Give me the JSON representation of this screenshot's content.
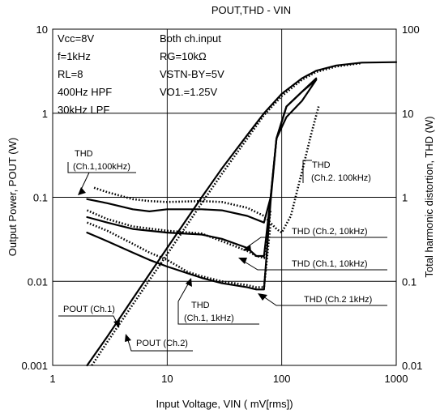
{
  "chart_data": {
    "type": "line",
    "title": "POUT,THD - VIN",
    "xlabel": "Input Voltage, VIN ( mV[rms])",
    "ylabel": "Output Power, POUT (W)",
    "y2label": "Total harmonic distortion, THD (W)",
    "x_scale": "log",
    "y_scale": "log",
    "xlim": [
      1,
      1000
    ],
    "ylim": [
      0.001,
      10
    ],
    "y2lim": [
      0.01,
      100
    ],
    "x_ticks": [
      "1",
      "10",
      "100",
      "1000"
    ],
    "y_ticks": [
      "0.001",
      "0.01",
      "0.1",
      "1",
      "10"
    ],
    "y2_ticks": [
      "0.01",
      "0.1",
      "1",
      "10",
      "100"
    ],
    "grid": true,
    "conditions_left": [
      "Vcc=8V",
      "f=1kHz",
      "RL=8",
      "400Hz HPF",
      "30kHz LPF"
    ],
    "conditions_right": [
      "Both ch.input",
      "RG=10kΩ",
      "VSTN-BY=5V",
      "VO1.=1.25V"
    ],
    "series": [
      {
        "name": "POUT (Ch.1)",
        "axis": "left",
        "style": "solid",
        "points": [
          [
            2,
            0.001
          ],
          [
            3,
            0.0022
          ],
          [
            5,
            0.0062
          ],
          [
            10,
            0.025
          ],
          [
            20,
            0.1
          ],
          [
            30,
            0.22
          ],
          [
            50,
            0.55
          ],
          [
            70,
            1.0
          ],
          [
            100,
            1.7
          ],
          [
            150,
            2.6
          ],
          [
            200,
            3.2
          ],
          [
            300,
            3.7
          ],
          [
            500,
            4.0
          ],
          [
            1000,
            4.05
          ]
        ]
      },
      {
        "name": "POUT (Ch.2)",
        "axis": "left",
        "style": "dotted",
        "points": [
          [
            2.2,
            0.001
          ],
          [
            3,
            0.0019
          ],
          [
            5,
            0.0053
          ],
          [
            10,
            0.021
          ],
          [
            20,
            0.085
          ],
          [
            30,
            0.19
          ],
          [
            50,
            0.5
          ],
          [
            70,
            0.95
          ],
          [
            100,
            1.6
          ],
          [
            150,
            2.5
          ],
          [
            200,
            3.1
          ],
          [
            300,
            3.6
          ],
          [
            500,
            3.95
          ]
        ]
      },
      {
        "name": "THD (Ch.1,100kHz)",
        "axis": "right",
        "style": "solid",
        "points": [
          [
            2,
            0.95
          ],
          [
            3,
            0.85
          ],
          [
            5,
            0.72
          ],
          [
            7,
            0.68
          ],
          [
            10,
            0.72
          ],
          [
            20,
            0.72
          ],
          [
            30,
            0.7
          ],
          [
            50,
            0.6
          ],
          [
            70,
            0.5
          ],
          [
            80,
            1.0
          ],
          [
            90,
            5.0
          ],
          [
            110,
            9.0
          ],
          [
            150,
            14.0
          ],
          [
            200,
            25.0
          ]
        ]
      },
      {
        "name": "THD (Ch.2, 100kHz)",
        "axis": "right",
        "style": "dotted",
        "points": [
          [
            2.3,
            1.3
          ],
          [
            3,
            1.15
          ],
          [
            5,
            0.95
          ],
          [
            7,
            0.9
          ],
          [
            10,
            0.88
          ],
          [
            20,
            0.9
          ],
          [
            30,
            0.88
          ],
          [
            50,
            0.75
          ],
          [
            70,
            0.6
          ],
          [
            90,
            0.42
          ],
          [
            100,
            0.38
          ],
          [
            120,
            0.6
          ],
          [
            150,
            2.0
          ],
          [
            180,
            5.5
          ],
          [
            210,
            12.0
          ]
        ]
      },
      {
        "name": "THD (Ch.1, 10kHz)",
        "axis": "right",
        "style": "solid",
        "points": [
          [
            2,
            0.58
          ],
          [
            3,
            0.5
          ],
          [
            5,
            0.42
          ],
          [
            10,
            0.38
          ],
          [
            20,
            0.36
          ],
          [
            30,
            0.32
          ],
          [
            50,
            0.25
          ],
          [
            60,
            0.2
          ],
          [
            70,
            0.2
          ],
          [
            80,
            1.0
          ],
          [
            90,
            5.0
          ],
          [
            110,
            12.0
          ],
          [
            150,
            18.0
          ],
          [
            200,
            26.0
          ]
        ]
      },
      {
        "name": "THD (Ch.2, 10kHz)",
        "axis": "right",
        "style": "dotted",
        "points": [
          [
            2,
            0.7
          ],
          [
            3,
            0.55
          ],
          [
            5,
            0.45
          ],
          [
            10,
            0.4
          ],
          [
            20,
            0.37
          ],
          [
            30,
            0.3
          ],
          [
            50,
            0.23
          ],
          [
            60,
            0.2
          ],
          [
            70,
            0.19
          ],
          [
            80,
            0.7
          ]
        ]
      },
      {
        "name": "THD (Ch.1, 1kHz)",
        "axis": "right",
        "style": "solid",
        "points": [
          [
            2,
            0.38
          ],
          [
            3,
            0.3
          ],
          [
            5,
            0.22
          ],
          [
            7,
            0.18
          ],
          [
            10,
            0.15
          ],
          [
            15,
            0.125
          ],
          [
            20,
            0.11
          ],
          [
            30,
            0.095
          ],
          [
            50,
            0.085
          ],
          [
            60,
            0.08
          ],
          [
            70,
            0.08
          ],
          [
            80,
            0.9
          ],
          [
            90,
            5.0
          ],
          [
            110,
            12.0
          ],
          [
            150,
            18.0
          ],
          [
            200,
            25.0
          ]
        ]
      },
      {
        "name": "THD (Ch.2 1kHz)",
        "axis": "right",
        "style": "dotted",
        "points": [
          [
            2,
            0.5
          ],
          [
            3,
            0.4
          ],
          [
            5,
            0.28
          ],
          [
            7,
            0.22
          ],
          [
            10,
            0.18
          ],
          [
            15,
            0.13
          ],
          [
            20,
            0.115
          ],
          [
            30,
            0.1
          ],
          [
            50,
            0.09
          ],
          [
            60,
            0.085
          ],
          [
            70,
            0.085
          ],
          [
            80,
            0.5
          ]
        ]
      }
    ],
    "annotations": [
      {
        "label": "THD",
        "sub": "(Ch.1,100kHz)"
      },
      {
        "label": "THD",
        "sub": "(Ch.2. 100kHz)"
      },
      {
        "label": "THD (Ch.2, 10kHz)"
      },
      {
        "label": "THD (Ch.1, 10kHz)"
      },
      {
        "label": "THD (Ch.2 1kHz)"
      },
      {
        "label": "THD",
        "sub": "(Ch.1, 1kHz)"
      },
      {
        "label": "POUT (Ch.1)"
      },
      {
        "label": "POUT (Ch.2)"
      }
    ]
  }
}
